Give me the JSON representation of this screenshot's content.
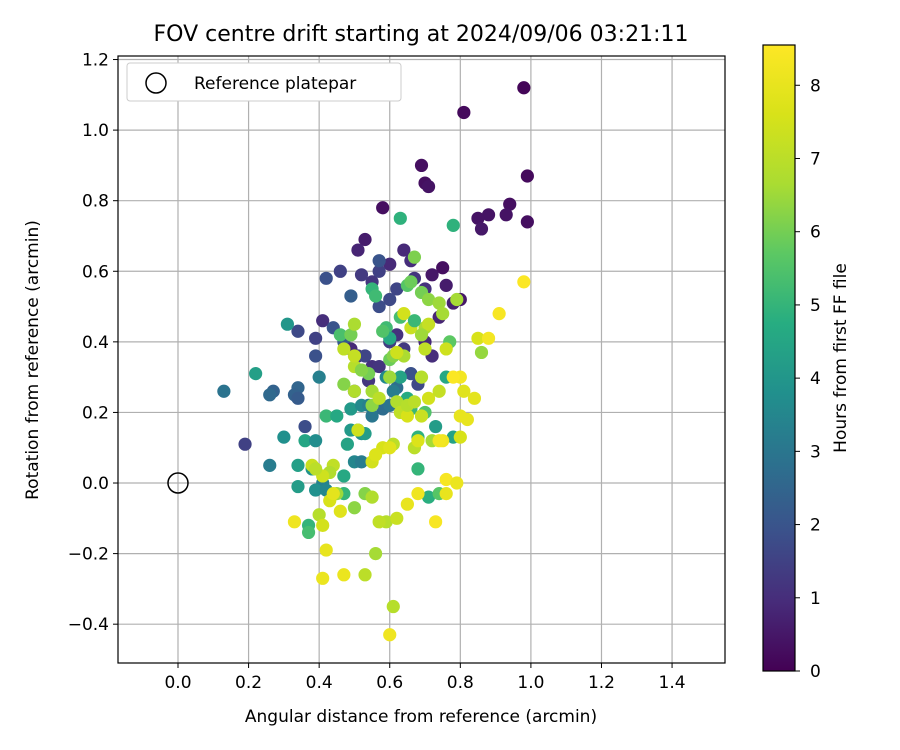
{
  "chart_data": {
    "type": "scatter",
    "title": "FOV centre drift starting at 2024/09/06 03:21:11",
    "xlabel": "Angular distance from reference (arcmin)",
    "ylabel": "Rotation from reference (arcmin)",
    "xlim": [
      -0.17,
      1.55
    ],
    "ylim": [
      -0.51,
      1.21
    ],
    "xticks": [
      "0.0",
      "0.2",
      "0.4",
      "0.6",
      "0.8",
      "1.0",
      "1.2",
      "1.4"
    ],
    "yticks": [
      "−0.4",
      "−0.2",
      "0.0",
      "0.2",
      "0.4",
      "0.6",
      "0.8",
      "1.0",
      "1.2"
    ],
    "grid": true,
    "legend": {
      "placement": "top-left",
      "entries": [
        "Reference platepar"
      ]
    },
    "reference_point": {
      "x": 0.0,
      "y": 0.0
    },
    "colorbar": {
      "label": "Hours from first FF file",
      "range": [
        0,
        8.55
      ],
      "ticks": [
        "0",
        "1",
        "2",
        "3",
        "4",
        "5",
        "6",
        "7",
        "8"
      ],
      "colormap": "viridis"
    },
    "points": [
      [
        0.98,
        1.12,
        0.1
      ],
      [
        0.81,
        1.05,
        0.2
      ],
      [
        0.99,
        0.87,
        0.2
      ],
      [
        0.69,
        0.9,
        0.3
      ],
      [
        0.7,
        0.85,
        0.3
      ],
      [
        0.71,
        0.84,
        0.4
      ],
      [
        0.58,
        0.78,
        0.3
      ],
      [
        0.94,
        0.79,
        0.3
      ],
      [
        0.88,
        0.76,
        0.4
      ],
      [
        0.85,
        0.75,
        0.4
      ],
      [
        0.93,
        0.76,
        0.4
      ],
      [
        0.86,
        0.72,
        0.5
      ],
      [
        0.99,
        0.74,
        0.3
      ],
      [
        0.53,
        0.69,
        0.6
      ],
      [
        0.51,
        0.66,
        0.8
      ],
      [
        0.64,
        0.66,
        0.9
      ],
      [
        0.6,
        0.62,
        0.9
      ],
      [
        0.66,
        0.63,
        1.0
      ],
      [
        0.75,
        0.61,
        0.3
      ],
      [
        0.72,
        0.59,
        0.5
      ],
      [
        0.76,
        0.56,
        0.6
      ],
      [
        0.78,
        0.51,
        0.7
      ],
      [
        0.8,
        0.52,
        0.5
      ],
      [
        0.74,
        0.47,
        0.8
      ],
      [
        0.7,
        0.55,
        1.1
      ],
      [
        0.67,
        0.58,
        1.2
      ],
      [
        0.55,
        0.57,
        1.2
      ],
      [
        0.52,
        0.59,
        1.3
      ],
      [
        0.57,
        0.6,
        1.5
      ],
      [
        0.57,
        0.63,
        2.0
      ],
      [
        0.62,
        0.55,
        1.6
      ],
      [
        0.6,
        0.52,
        1.7
      ],
      [
        0.57,
        0.5,
        1.8
      ],
      [
        0.46,
        0.6,
        1.5
      ],
      [
        0.42,
        0.58,
        1.9
      ],
      [
        0.49,
        0.53,
        2.3
      ],
      [
        0.41,
        0.46,
        1.0
      ],
      [
        0.39,
        0.41,
        1.5
      ],
      [
        0.34,
        0.43,
        1.7
      ],
      [
        0.44,
        0.44,
        2.0
      ],
      [
        0.47,
        0.4,
        2.2
      ],
      [
        0.49,
        0.38,
        0.9
      ],
      [
        0.51,
        0.36,
        1.3
      ],
      [
        0.53,
        0.36,
        1.6
      ],
      [
        0.55,
        0.33,
        1.1
      ],
      [
        0.57,
        0.33,
        1.2
      ],
      [
        0.6,
        0.4,
        1.4
      ],
      [
        0.62,
        0.42,
        1.1
      ],
      [
        0.64,
        0.38,
        1.3
      ],
      [
        0.66,
        0.31,
        1.9
      ],
      [
        0.68,
        0.28,
        1.7
      ],
      [
        0.7,
        0.4,
        0.9
      ],
      [
        0.72,
        0.36,
        1.0
      ],
      [
        0.54,
        0.29,
        1.2
      ],
      [
        0.5,
        0.26,
        1.3
      ],
      [
        0.39,
        0.36,
        1.9
      ],
      [
        0.4,
        0.3,
        3.3
      ],
      [
        0.34,
        0.27,
        2.5
      ],
      [
        0.33,
        0.25,
        2.4
      ],
      [
        0.34,
        0.24,
        2.2
      ],
      [
        0.27,
        0.26,
        2.4
      ],
      [
        0.26,
        0.25,
        2.6
      ],
      [
        0.13,
        0.26,
        2.9
      ],
      [
        0.22,
        0.31,
        4.3
      ],
      [
        0.31,
        0.45,
        4.0
      ],
      [
        0.19,
        0.11,
        1.5
      ],
      [
        0.26,
        0.05,
        3.2
      ],
      [
        0.3,
        0.13,
        3.8
      ],
      [
        0.36,
        0.16,
        1.8
      ],
      [
        0.36,
        0.12,
        4.5
      ],
      [
        0.34,
        0.05,
        4.3
      ],
      [
        0.34,
        -0.01,
        4.2
      ],
      [
        0.38,
        0.04,
        3.9
      ],
      [
        0.41,
        0.0,
        3.3
      ],
      [
        0.39,
        -0.02,
        3.8
      ],
      [
        0.42,
        -0.02,
        3.5
      ],
      [
        0.37,
        -0.12,
        5.0
      ],
      [
        0.37,
        -0.14,
        5.3
      ],
      [
        0.39,
        0.12,
        3.7
      ],
      [
        0.42,
        0.19,
        5.1
      ],
      [
        0.45,
        0.19,
        4.6
      ],
      [
        0.48,
        0.11,
        4.4
      ],
      [
        0.49,
        0.15,
        4.1
      ],
      [
        0.51,
        0.15,
        4.3
      ],
      [
        0.52,
        0.14,
        3.9
      ],
      [
        0.53,
        0.14,
        4.2
      ],
      [
        0.5,
        0.06,
        3.5
      ],
      [
        0.52,
        0.06,
        3.2
      ],
      [
        0.47,
        0.02,
        4.6
      ],
      [
        0.47,
        -0.03,
        5.0
      ],
      [
        0.49,
        0.21,
        4.1
      ],
      [
        0.52,
        0.22,
        3.6
      ],
      [
        0.54,
        0.22,
        3.3
      ],
      [
        0.55,
        0.19,
        3.0
      ],
      [
        0.58,
        0.21,
        2.7
      ],
      [
        0.6,
        0.22,
        2.9
      ],
      [
        0.62,
        0.27,
        2.8
      ],
      [
        0.61,
        0.26,
        3.2
      ],
      [
        0.59,
        0.3,
        3.6
      ],
      [
        0.63,
        0.3,
        4.4
      ],
      [
        0.65,
        0.24,
        4.7
      ],
      [
        0.66,
        0.21,
        5.1
      ],
      [
        0.68,
        0.13,
        4.9
      ],
      [
        0.7,
        0.2,
        5.5
      ],
      [
        0.73,
        0.16,
        4.2
      ],
      [
        0.76,
        0.3,
        4.6
      ],
      [
        0.78,
        0.13,
        4.4
      ],
      [
        0.68,
        0.04,
        5.0
      ],
      [
        0.71,
        -0.04,
        4.8
      ],
      [
        0.74,
        -0.03,
        5.6
      ],
      [
        0.59,
        0.44,
        5.2
      ],
      [
        0.6,
        0.41,
        4.6
      ],
      [
        0.63,
        0.47,
        5.3
      ],
      [
        0.65,
        0.56,
        5.6
      ],
      [
        0.66,
        0.57,
        5.9
      ],
      [
        0.67,
        0.64,
        6.1
      ],
      [
        0.69,
        0.54,
        6.0
      ],
      [
        0.71,
        0.52,
        6.3
      ],
      [
        0.74,
        0.51,
        6.5
      ],
      [
        0.75,
        0.48,
        6.6
      ],
      [
        0.7,
        0.44,
        6.7
      ],
      [
        0.71,
        0.45,
        7.2
      ],
      [
        0.77,
        0.4,
        5.7
      ],
      [
        0.79,
        0.52,
        6.6
      ],
      [
        0.78,
        0.73,
        4.9
      ],
      [
        0.63,
        0.75,
        4.9
      ],
      [
        0.55,
        0.55,
        5.0
      ],
      [
        0.56,
        0.53,
        5.2
      ],
      [
        0.58,
        0.43,
        5.5
      ],
      [
        0.6,
        0.35,
        5.9
      ],
      [
        0.61,
        0.36,
        6.2
      ],
      [
        0.64,
        0.36,
        6.7
      ],
      [
        0.64,
        0.48,
        7.5
      ],
      [
        0.66,
        0.44,
        7.3
      ],
      [
        0.69,
        0.42,
        6.5
      ],
      [
        0.46,
        0.42,
        5.4
      ],
      [
        0.49,
        0.42,
        6.0
      ],
      [
        0.5,
        0.45,
        6.7
      ],
      [
        0.47,
        0.38,
        7.1
      ],
      [
        0.5,
        0.33,
        6.9
      ],
      [
        0.52,
        0.32,
        6.4
      ],
      [
        0.54,
        0.31,
        6.0
      ],
      [
        0.47,
        0.28,
        6.2
      ],
      [
        0.5,
        0.36,
        7.2
      ],
      [
        0.5,
        0.26,
        6.8
      ],
      [
        0.55,
        0.22,
        6.3
      ],
      [
        0.55,
        0.26,
        6.6
      ],
      [
        0.57,
        0.24,
        7.0
      ],
      [
        0.6,
        0.3,
        6.5
      ],
      [
        0.62,
        0.23,
        6.8
      ],
      [
        0.63,
        0.2,
        7.1
      ],
      [
        0.65,
        0.19,
        7.6
      ],
      [
        0.65,
        0.22,
        6.9
      ],
      [
        0.67,
        0.23,
        7.0
      ],
      [
        0.69,
        0.19,
        7.3
      ],
      [
        0.69,
        0.3,
        6.9
      ],
      [
        0.71,
        0.24,
        7.5
      ],
      [
        0.74,
        0.26,
        7.2
      ],
      [
        0.76,
        0.38,
        7.4
      ],
      [
        0.8,
        0.3,
        8.3
      ],
      [
        0.81,
        0.26,
        7.8
      ],
      [
        0.82,
        0.18,
        8.0
      ],
      [
        0.8,
        0.13,
        7.6
      ],
      [
        0.84,
        0.24,
        7.9
      ],
      [
        0.75,
        0.12,
        8.2
      ],
      [
        0.72,
        0.12,
        6.6
      ],
      [
        0.61,
        0.11,
        7.0
      ],
      [
        0.58,
        0.1,
        7.6
      ],
      [
        0.55,
        0.06,
        7.5
      ],
      [
        0.56,
        0.08,
        7.7
      ],
      [
        0.6,
        0.1,
        7.8
      ],
      [
        0.67,
        0.1,
        7.0
      ],
      [
        0.68,
        0.12,
        7.7
      ],
      [
        0.53,
        -0.03,
        6.2
      ],
      [
        0.55,
        -0.04,
        6.8
      ],
      [
        0.5,
        -0.07,
        6.3
      ],
      [
        0.45,
        -0.03,
        6.5
      ],
      [
        0.43,
        -0.05,
        7.6
      ],
      [
        0.4,
        -0.09,
        6.9
      ],
      [
        0.44,
        -0.03,
        7.9
      ],
      [
        0.46,
        -0.08,
        7.8
      ],
      [
        0.41,
        -0.12,
        7.5
      ],
      [
        0.44,
        0.05,
        7.1
      ],
      [
        0.43,
        0.03,
        6.8
      ],
      [
        0.41,
        0.02,
        7.4
      ],
      [
        0.38,
        0.05,
        7.3
      ],
      [
        0.39,
        0.04,
        7.0
      ],
      [
        0.33,
        -0.11,
        8.2
      ],
      [
        0.42,
        -0.19,
        8.0
      ],
      [
        0.41,
        -0.27,
        8.1
      ],
      [
        0.47,
        -0.26,
        8.1
      ],
      [
        0.53,
        -0.26,
        7.0
      ],
      [
        0.56,
        -0.2,
        6.6
      ],
      [
        0.59,
        -0.11,
        6.9
      ],
      [
        0.62,
        -0.1,
        7.3
      ],
      [
        0.65,
        -0.06,
        8.0
      ],
      [
        0.68,
        -0.03,
        8.2
      ],
      [
        0.73,
        -0.11,
        8.4
      ],
      [
        0.76,
        -0.03,
        8.0
      ],
      [
        0.76,
        0.01,
        8.4
      ],
      [
        0.79,
        0.0,
        8.1
      ],
      [
        0.8,
        0.19,
        8.0
      ],
      [
        0.86,
        0.37,
        6.4
      ],
      [
        0.85,
        0.41,
        7.6
      ],
      [
        0.88,
        0.41,
        8.3
      ],
      [
        0.91,
        0.48,
        8.4
      ],
      [
        0.98,
        0.57,
        8.5
      ],
      [
        0.78,
        0.3,
        8.5
      ],
      [
        0.74,
        0.12,
        8.3
      ],
      [
        0.7,
        0.38,
        7.1
      ],
      [
        0.62,
        0.37,
        7.4
      ],
      [
        0.61,
        -0.35,
        6.9
      ],
      [
        0.6,
        -0.43,
        8.2
      ],
      [
        0.57,
        -0.11,
        7.1
      ],
      [
        0.51,
        0.15,
        7.4
      ],
      [
        0.52,
        0.32,
        6.2
      ],
      [
        0.67,
        0.46,
        5.1
      ]
    ]
  }
}
